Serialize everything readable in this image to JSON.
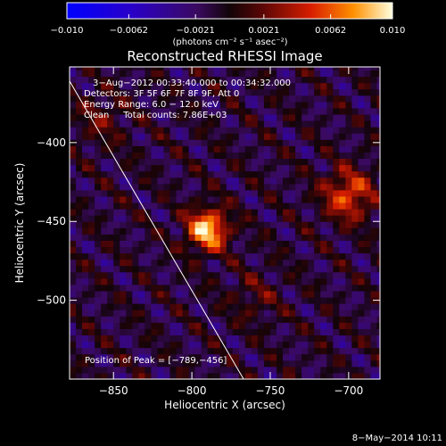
{
  "chart_data": {
    "type": "heatmap",
    "title": "Reconstructed RHESSI Image",
    "xlabel": "Heliocentric X (arcsec)",
    "ylabel": "Heliocentric Y (arcsec)",
    "xlim": [
      -878,
      -680
    ],
    "ylim": [
      -550,
      -352
    ],
    "x_ticks": [
      -850,
      -800,
      -750,
      -700
    ],
    "y_ticks": [
      -400,
      -450,
      -500
    ],
    "colorbar": {
      "label": "(photons cm⁻² s⁻¹ asec⁻²)",
      "range": [
        -0.01,
        0.01
      ],
      "tick_values": [
        -0.01,
        -0.0062,
        -0.0021,
        0.0021,
        0.0062,
        0.01
      ],
      "tick_labels": [
        "−0.010",
        "−0.0062",
        "−0.0021",
        "0.0021",
        "0.0062",
        "0.010"
      ]
    },
    "annotations": [
      "3−Aug−2012 00:33:40.000 to 00:34:32.000",
      "Detectors: 3F 5F 6F 7F 8F 9F, Att 0",
      "Energy Range: 6.0 − 12.0 keV",
      "Clean     Total counts: 7.86E+03"
    ],
    "peak_label": "Position of Peak = [−789,−456]",
    "peak": [
      -789,
      -456
    ],
    "limb_line": [
      [
        -878,
        -361
      ],
      [
        -767,
        -550
      ]
    ],
    "sources": [
      {
        "x": -790,
        "y": -455,
        "value": 0.01
      },
      {
        "x": -700,
        "y": -433,
        "value": 0.0065
      },
      {
        "x": -858,
        "y": -385,
        "value": 0.0025
      },
      {
        "x": -760,
        "y": -498,
        "value": 0.002
      }
    ]
  },
  "footer": {
    "date": "8−May−2014 10:11"
  }
}
